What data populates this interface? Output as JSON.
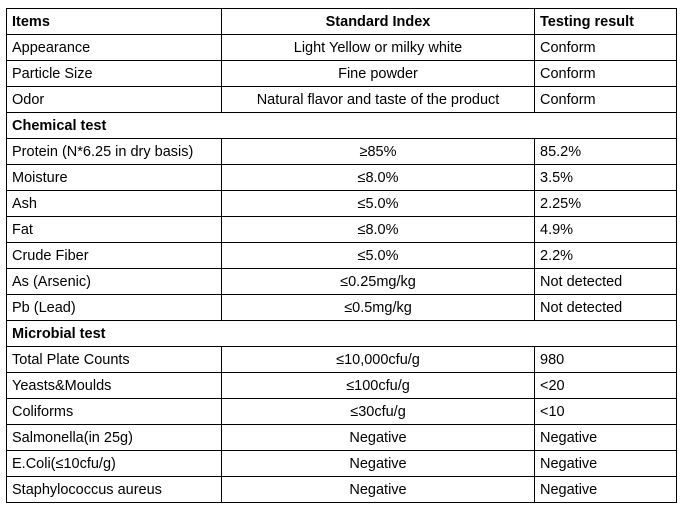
{
  "header": {
    "items": "Items",
    "standard_index": "Standard Index",
    "testing_result": "Testing result"
  },
  "general": [
    {
      "item": "Appearance",
      "standard": "Light Yellow or milky white",
      "result": "Conform"
    },
    {
      "item": "Particle Size",
      "standard": "Fine powder",
      "result": "Conform"
    },
    {
      "item": "Odor",
      "standard": "Natural flavor and taste of the product",
      "result": "Conform"
    }
  ],
  "chemical_section": "Chemical test",
  "chemical": [
    {
      "item": "Protein (N*6.25 in dry basis)",
      "standard": "≥85%",
      "result": "85.2%"
    },
    {
      "item": "Moisture",
      "standard": "≤8.0%",
      "result": "3.5%"
    },
    {
      "item": "Ash",
      "standard": "≤5.0%",
      "result": "2.25%"
    },
    {
      "item": "Fat",
      "standard": "≤8.0%",
      "result": "4.9%"
    },
    {
      "item": "Crude Fiber",
      "standard": "≤5.0%",
      "result": "2.2%"
    },
    {
      "item": "As (Arsenic)",
      "standard": "≤0.25mg/kg",
      "result": "Not detected"
    },
    {
      "item": "Pb (Lead)",
      "standard": "≤0.5mg/kg",
      "result": "Not detected"
    }
  ],
  "microbial_section": "Microbial test",
  "microbial": [
    {
      "item": "Total Plate Counts",
      "standard": "≤10,000cfu/g",
      "result": "980"
    },
    {
      "item": "Yeasts&Moulds",
      "standard": "≤100cfu/g",
      "result": "<20"
    },
    {
      "item": "Coliforms",
      "standard": "≤30cfu/g",
      "result": "<10"
    },
    {
      "item": "Salmonella(in 25g)",
      "standard": "Negative",
      "result": "Negative"
    },
    {
      "item": "E.Coli(≤10cfu/g)",
      "standard": "Negative",
      "result": "Negative"
    },
    {
      "item": "Staphylococcus aureus",
      "standard": "Negative",
      "result": "Negative"
    }
  ]
}
